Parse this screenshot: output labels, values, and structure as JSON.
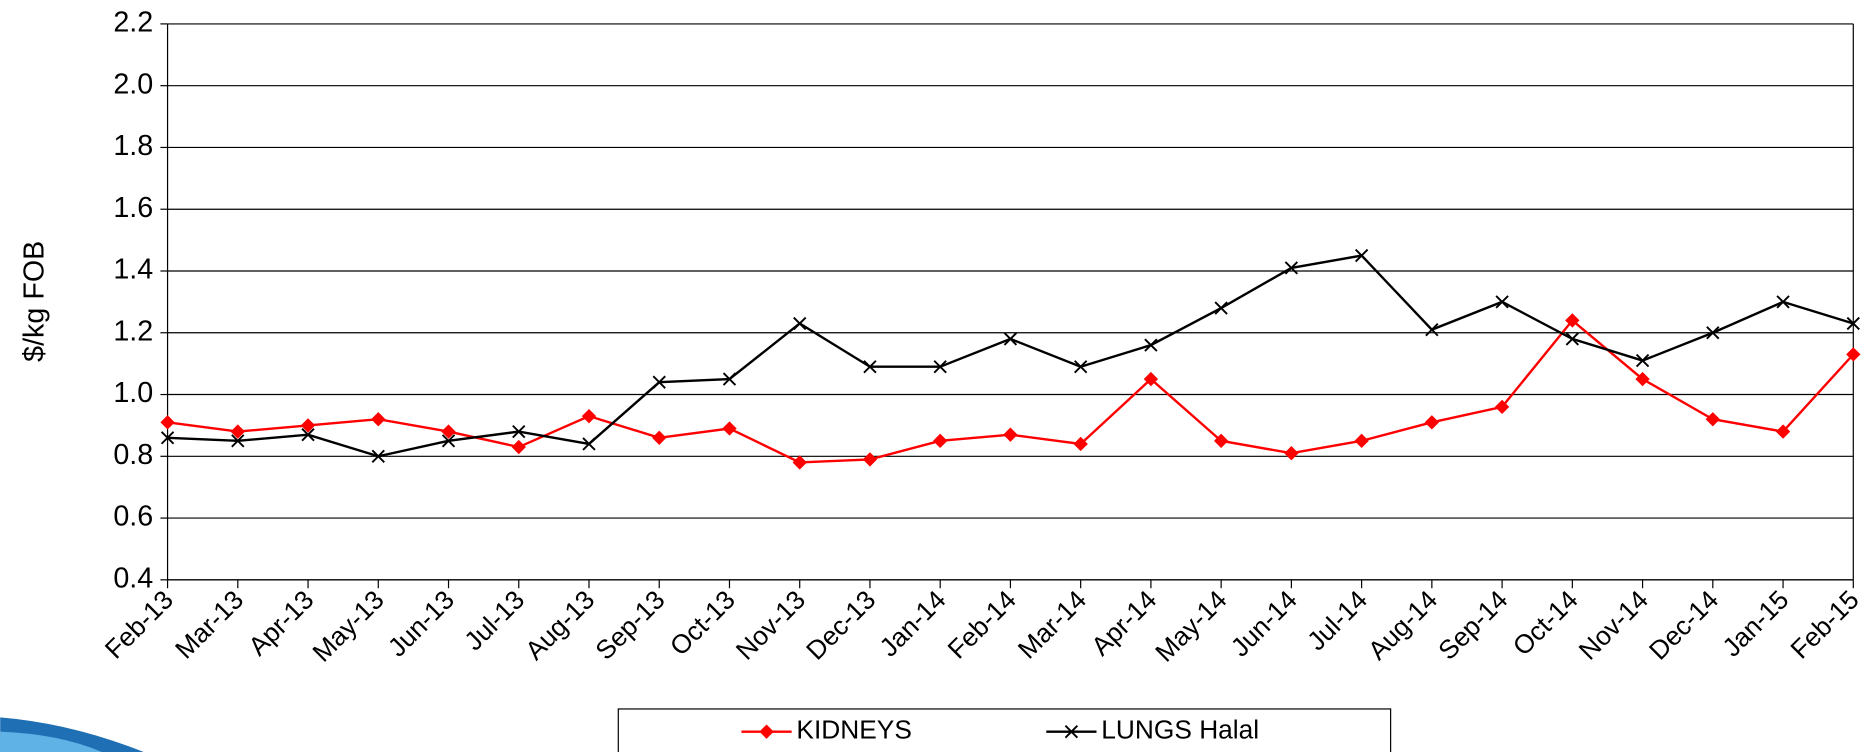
{
  "chart_data": {
    "type": "line",
    "y_label": "$/kg FOB",
    "categories": [
      "Feb-13",
      "Mar-13",
      "Apr-13",
      "May-13",
      "Jun-13",
      "Jul-13",
      "Aug-13",
      "Sep-13",
      "Oct-13",
      "Nov-13",
      "Dec-13",
      "Jan-14",
      "Feb-14",
      "Mar-14",
      "Apr-14",
      "May-14",
      "Jun-14",
      "Jul-14",
      "Aug-14",
      "Sep-14",
      "Oct-14",
      "Nov-14",
      "Dec-14",
      "Jan-15",
      "Feb-15"
    ],
    "series": [
      {
        "name": "KIDNEYS",
        "color": "#ff0000",
        "marker": "diamond",
        "values": [
          0.91,
          0.88,
          0.9,
          0.92,
          0.88,
          0.83,
          0.93,
          0.86,
          0.89,
          0.78,
          0.79,
          0.85,
          0.87,
          0.84,
          1.05,
          0.85,
          0.81,
          0.85,
          0.91,
          0.96,
          1.24,
          1.05,
          0.92,
          0.88,
          1.13
        ]
      },
      {
        "name": "LUNGS Halal",
        "color": "#000000",
        "marker": "x",
        "values": [
          0.86,
          0.85,
          0.87,
          0.8,
          0.85,
          0.88,
          0.84,
          1.04,
          1.05,
          1.23,
          1.09,
          1.09,
          1.18,
          1.09,
          1.16,
          1.28,
          1.41,
          1.45,
          1.21,
          1.3,
          1.18,
          1.11,
          1.2,
          1.3,
          1.23
        ]
      }
    ],
    "ylim": [
      0.4,
      2.2
    ],
    "yticks": [
      0.4,
      0.6,
      0.8,
      {
        "value": 1,
        "label": "1.0"
      },
      1.2,
      1.4,
      1.6,
      1.8,
      {
        "value": 2,
        "label": "2.0"
      },
      2.2
    ],
    "grid": true,
    "legend": "bottom"
  }
}
